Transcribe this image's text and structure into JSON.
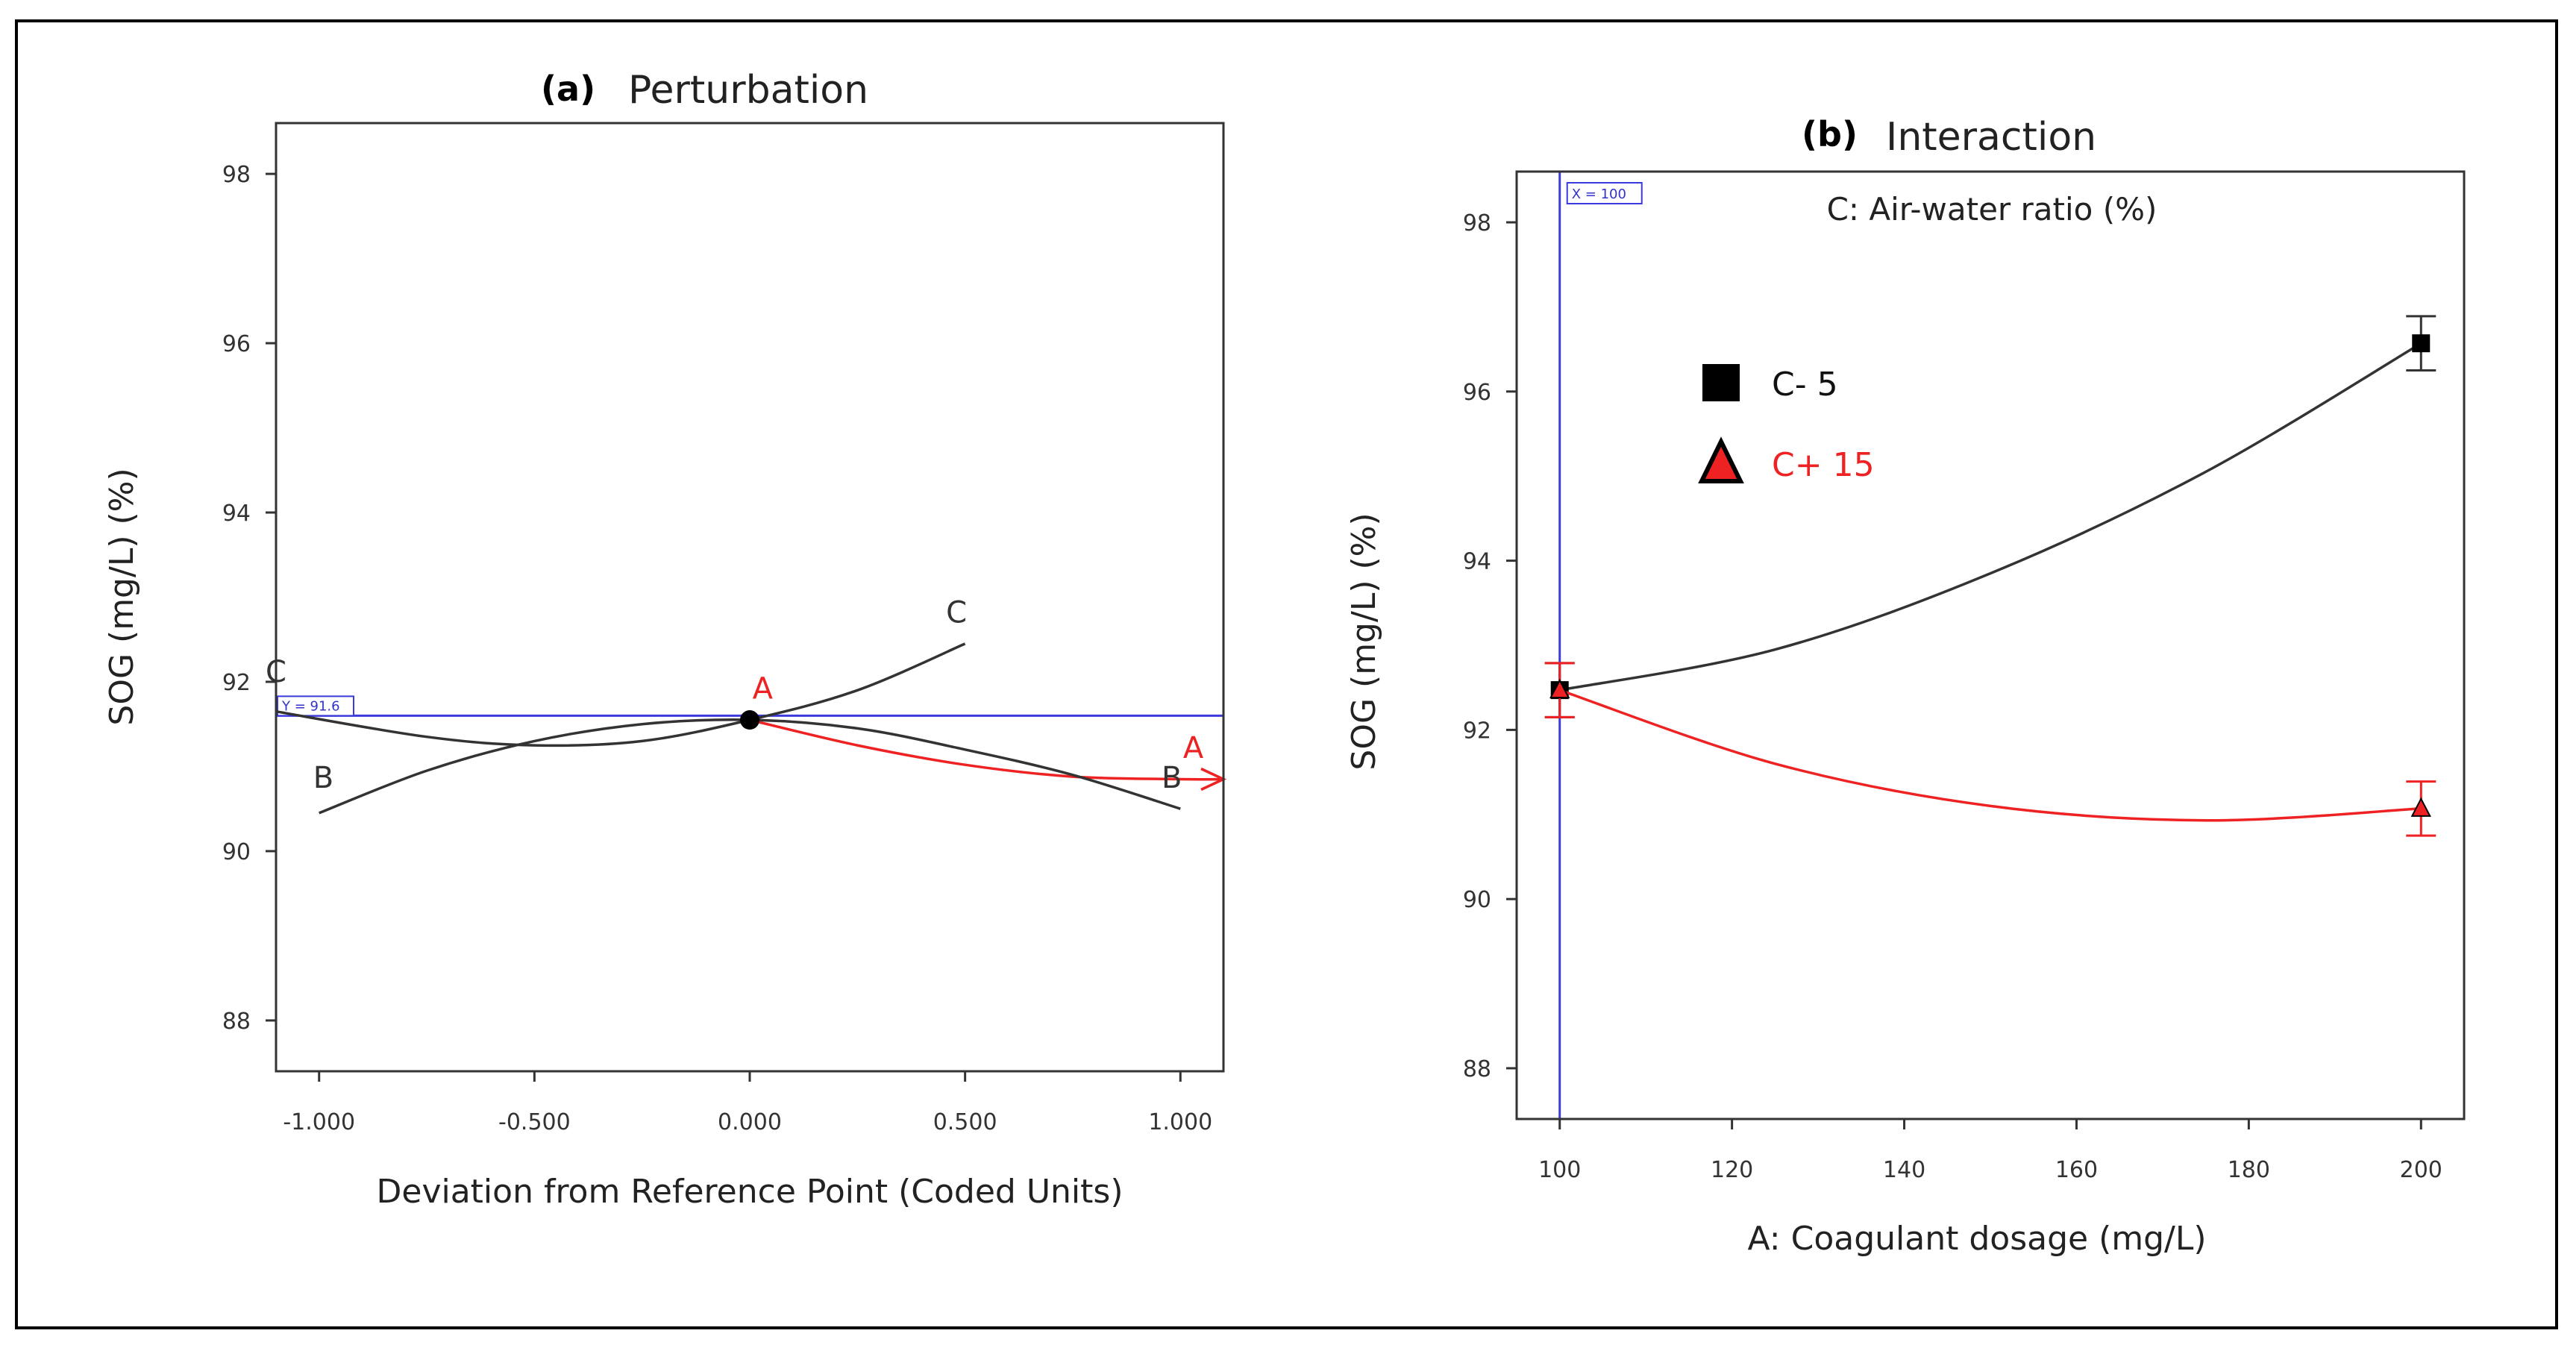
{
  "colors": {
    "series_black": "#333333",
    "series_red": "#ee2222",
    "reference": "#3b3bdd",
    "frame": "#000000"
  },
  "chart_data": [
    {
      "type": "line",
      "panel": "(a)",
      "title": "Perturbation",
      "xlabel": "Deviation from Reference Point (Coded Units)",
      "ylabel": "SOG (mg/L) (%)",
      "xlim": [
        -1.1,
        1.1
      ],
      "ylim": [
        87.4,
        98.6
      ],
      "xticks": [
        -1,
        -0.5,
        0,
        0.5,
        1
      ],
      "xtick_labels": [
        "-1.000",
        "-0.500",
        "0.000",
        "0.500",
        "1.000"
      ],
      "yticks": [
        88,
        90,
        92,
        94,
        96,
        98
      ],
      "ytick_labels": [
        "88",
        "90",
        "92",
        "94",
        "96",
        "98"
      ],
      "reference_line": {
        "orientation": "horizontal",
        "value": 91.6,
        "label": "Y = 91.6"
      },
      "reference_point": {
        "x": 0,
        "y": 91.55
      },
      "series": [
        {
          "name": "A",
          "color": "#ee2222",
          "arrow": true,
          "x": [
            0,
            0.25,
            0.5,
            0.75,
            1.0,
            1.1
          ],
          "y": [
            91.55,
            91.25,
            91.02,
            90.88,
            90.85,
            90.85
          ]
        },
        {
          "name": "B",
          "color": "#333333",
          "x": [
            -1.0,
            -0.75,
            -0.5,
            -0.25,
            0,
            0.25,
            0.5,
            0.75,
            1.0
          ],
          "y": [
            90.45,
            90.95,
            91.3,
            91.5,
            91.55,
            91.45,
            91.2,
            90.9,
            90.5
          ]
        },
        {
          "name": "C",
          "color": "#333333",
          "x": [
            -1.1,
            -0.75,
            -0.5,
            -0.25,
            0,
            0.25,
            0.5
          ],
          "y": [
            91.65,
            91.35,
            91.25,
            91.3,
            91.55,
            91.9,
            92.45
          ]
        }
      ],
      "curve_labels": [
        {
          "text": "C",
          "x": -1.1,
          "y": 92.0,
          "color": "#333333"
        },
        {
          "text": "B",
          "x": -0.99,
          "y": 90.75,
          "color": "#333333"
        },
        {
          "text": "A",
          "x": 0.03,
          "y": 91.8,
          "color": "#ee2222"
        },
        {
          "text": "C",
          "x": 0.48,
          "y": 92.7,
          "color": "#333333"
        },
        {
          "text": "A",
          "x": 1.03,
          "y": 91.1,
          "color": "#ee2222"
        },
        {
          "text": "B",
          "x": 0.98,
          "y": 90.75,
          "color": "#333333"
        }
      ]
    },
    {
      "type": "line",
      "panel": "(b)",
      "title": "Interaction",
      "subtitle": "C: Air-water ratio (%)",
      "xlabel": "A: Coagulant dosage (mg/L)",
      "ylabel": "SOG (mg/L) (%)",
      "xlim": [
        95,
        205
      ],
      "ylim": [
        87.4,
        98.6
      ],
      "xticks": [
        100,
        120,
        140,
        160,
        180,
        200
      ],
      "xtick_labels": [
        "100",
        "120",
        "140",
        "160",
        "180",
        "200"
      ],
      "yticks": [
        88,
        90,
        92,
        94,
        96,
        98
      ],
      "ytick_labels": [
        "88",
        "90",
        "92",
        "94",
        "96",
        "98"
      ],
      "reference_line": {
        "orientation": "vertical",
        "value": 100,
        "label": "X = 100"
      },
      "legend": {
        "placement": "upper-left"
      },
      "series": [
        {
          "name": "C- 5",
          "marker": "square",
          "color": "#333333",
          "points_x": [
            100,
            200
          ],
          "points_y": [
            92.47,
            96.57
          ],
          "error": [
            0.32,
            0.32
          ],
          "curve_x": [
            100,
            125,
            150,
            175,
            200
          ],
          "curve_y": [
            92.47,
            92.95,
            93.85,
            95.05,
            96.57
          ]
        },
        {
          "name": "C+ 15",
          "marker": "triangle",
          "color": "#ee2222",
          "points_x": [
            100,
            200
          ],
          "points_y": [
            92.47,
            91.07
          ],
          "error": [
            0.32,
            0.32
          ],
          "curve_x": [
            100,
            125,
            150,
            175,
            200
          ],
          "curve_y": [
            92.47,
            91.6,
            91.1,
            90.93,
            91.07
          ]
        }
      ]
    }
  ]
}
